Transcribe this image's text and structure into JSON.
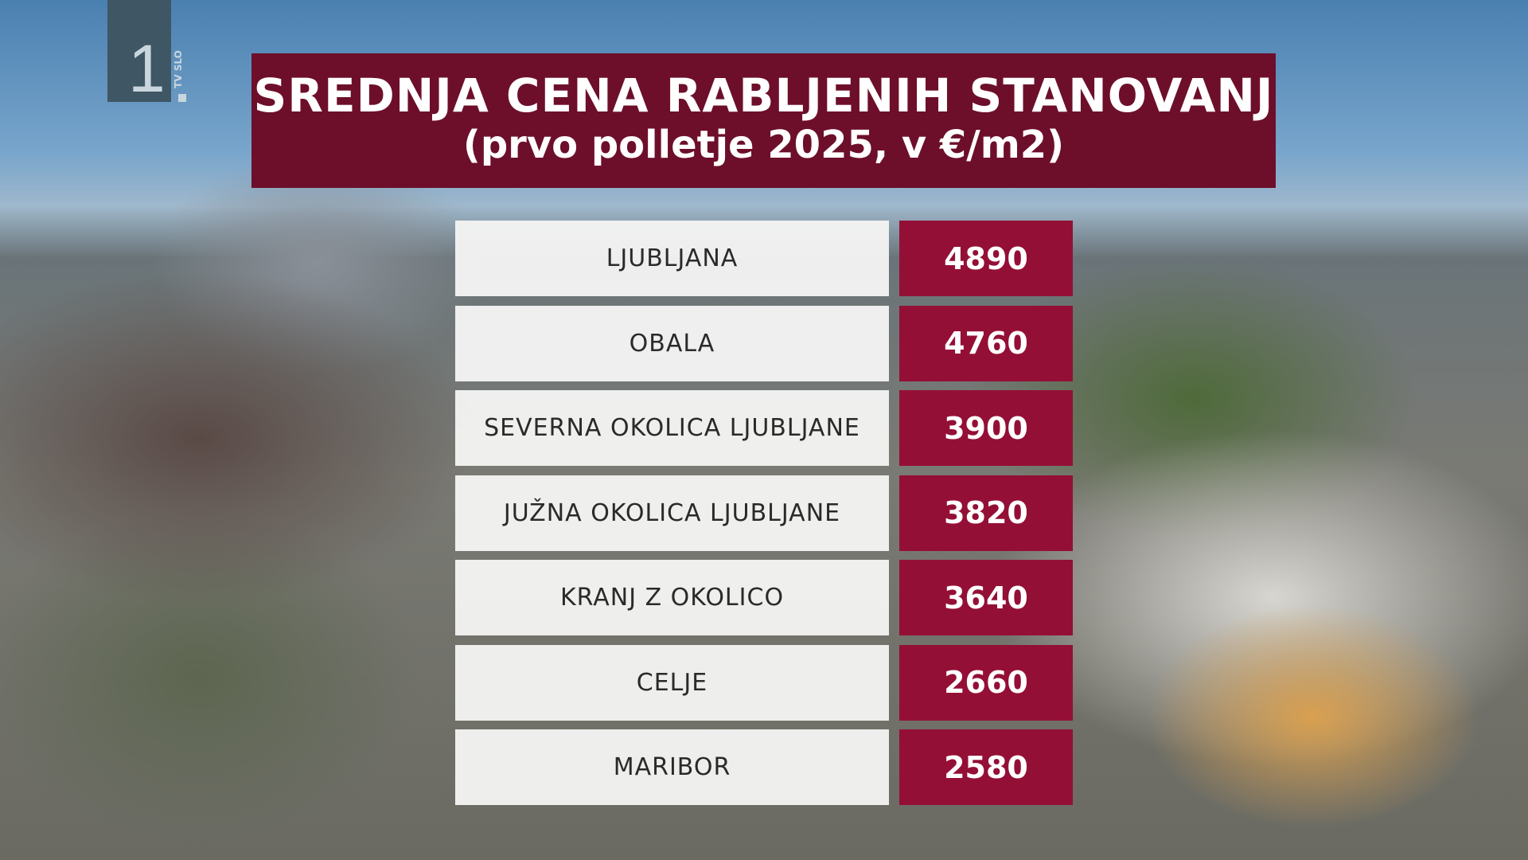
{
  "channel_logo": {
    "number": "1",
    "text": "TV SLO"
  },
  "header": {
    "title": "SREDNJA CENA RABLJENIH STANOVANJ",
    "subtitle": "(prvo polletje 2025, v €/m2)"
  },
  "colors": {
    "title_bg": "#6d0f2a",
    "value_bg": "#940f36",
    "label_bg": "#f4f4f2"
  },
  "rows": [
    {
      "region": "LJUBLJANA",
      "price": "4890"
    },
    {
      "region": "OBALA",
      "price": "4760"
    },
    {
      "region": "SEVERNA OKOLICA LJUBLJANE",
      "price": "3900"
    },
    {
      "region": "JUŽNA OKOLICA LJUBLJANE",
      "price": "3820"
    },
    {
      "region": "KRANJ Z OKOLICO",
      "price": "3640"
    },
    {
      "region": "CELJE",
      "price": "2660"
    },
    {
      "region": "MARIBOR",
      "price": "2580"
    }
  ]
}
